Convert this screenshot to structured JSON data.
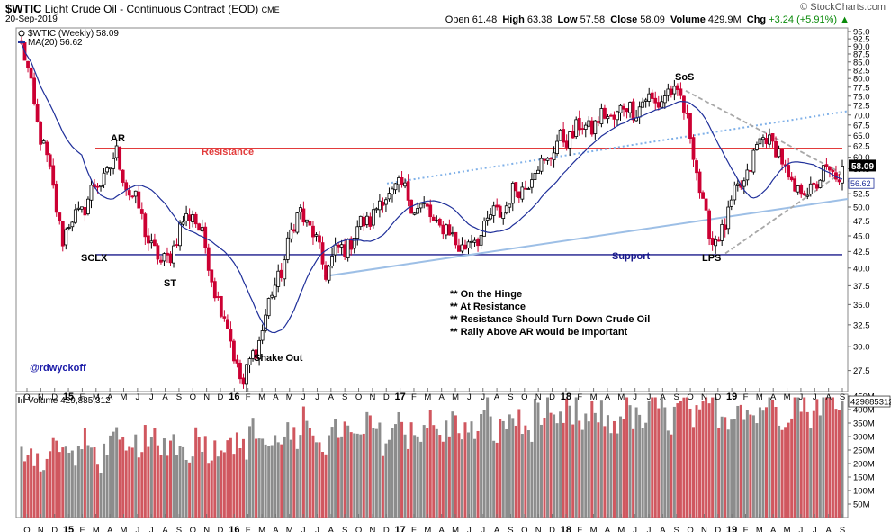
{
  "header": {
    "symbol": "$WTIC",
    "name": "Light Crude Oil - Continuous Contract (EOD)",
    "exchange": "CME",
    "date": "20-Sep-2019",
    "brand": "© StockCharts.com",
    "open_label": "Open",
    "open": "61.48",
    "high_label": "High",
    "high": "63.38",
    "low_label": "Low",
    "low": "57.58",
    "close_label": "Close",
    "close": "58.09",
    "volume_label": "Volume",
    "volume": "429.9M",
    "chg_label": "Chg",
    "chg": "+3.24 (+5.91%)",
    "chg_icon": "up-triangle-icon"
  },
  "legend": {
    "price": "$WTIC (Weekly) 58.09",
    "ma": "MA(20) 56.62",
    "volume": "Volume 429,885,312"
  },
  "annotations": {
    "handle": "@rdwyckoff",
    "notes": [
      "** On the Hinge",
      "** At Resistance",
      "** Resistance Should Turn Down Crude Oil",
      "** Rally Above AR would be Important"
    ]
  },
  "colors": {
    "up": "#000000",
    "down": "#cc0033",
    "ma": "#1f2f9a",
    "resistance": "#e23b3b",
    "support": "#1a1a8c",
    "trend": "#9dbfe6",
    "trend_dotted": "#7fb0e8",
    "wedge": "#a8a8a8",
    "vol_up": "#8c8c8c",
    "vol_down": "#d0575f",
    "price_tag": "#000000"
  },
  "chart_data": [
    {
      "type": "candlestick",
      "title": "$WTIC (Weekly)",
      "x_ticks": [
        "O",
        "N",
        "D",
        "15",
        "F",
        "M",
        "A",
        "M",
        "J",
        "J",
        "A",
        "S",
        "O",
        "N",
        "D",
        "16",
        "F",
        "M",
        "A",
        "M",
        "J",
        "J",
        "A",
        "S",
        "O",
        "N",
        "D",
        "17",
        "F",
        "M",
        "A",
        "M",
        "J",
        "J",
        "A",
        "S",
        "O",
        "N",
        "D",
        "18",
        "F",
        "M",
        "A",
        "M",
        "J",
        "J",
        "A",
        "S",
        "O",
        "N",
        "D",
        "19",
        "F",
        "M",
        "A",
        "M",
        "J",
        "J",
        "A",
        "S"
      ],
      "y_ticks": [
        27.5,
        30.0,
        32.5,
        35.0,
        37.5,
        40.0,
        42.5,
        45.0,
        47.5,
        50.0,
        52.5,
        55.0,
        57.5,
        60.0,
        62.5,
        65.0,
        67.5,
        70.0,
        72.5,
        75.0,
        77.5,
        80.0,
        82.5,
        85.0,
        87.5,
        90.0,
        92.5,
        95.0
      ],
      "y_scale": "log",
      "ylim": [
        25.8,
        95.0
      ],
      "last_price_tag": "58.09",
      "ma_tag": "56.62",
      "key_points": [
        {
          "date": "2014-10",
          "close": 90
        },
        {
          "date": "2015-01",
          "close": 45
        },
        {
          "date": "2015-05",
          "close": 60
        },
        {
          "date": "2015-08",
          "close": 40
        },
        {
          "date": "2015-10",
          "close": 50
        },
        {
          "date": "2016-02",
          "close": 26
        },
        {
          "date": "2016-06",
          "close": 50
        },
        {
          "date": "2016-08",
          "close": 40
        },
        {
          "date": "2017-01",
          "close": 54
        },
        {
          "date": "2017-06",
          "close": 43
        },
        {
          "date": "2017-11",
          "close": 57
        },
        {
          "date": "2018-01",
          "close": 65
        },
        {
          "date": "2018-06",
          "close": 72
        },
        {
          "date": "2018-10",
          "close": 76
        },
        {
          "date": "2018-12",
          "close": 43
        },
        {
          "date": "2019-04",
          "close": 66
        },
        {
          "date": "2019-06",
          "close": 52
        },
        {
          "date": "2019-09",
          "close": 58.09
        }
      ],
      "labels": [
        {
          "text": "AR",
          "price": 62.5
        },
        {
          "text": "Resistance",
          "price": 60.0
        },
        {
          "text": "SCLX",
          "price": 41.0
        },
        {
          "text": "ST",
          "price": 37.5
        },
        {
          "text": "Shake Out",
          "price": 27.3
        },
        {
          "text": "Support",
          "price": 41.0
        },
        {
          "text": "SoS",
          "price": 79.0
        },
        {
          "text": "LPS",
          "price": 40.0
        }
      ],
      "lines": {
        "resistance": 62.0,
        "support": 42.0
      }
    },
    {
      "type": "bar",
      "title": "Volume",
      "latest": 429885312,
      "latest_tag": "429885312",
      "y_ticks": [
        "50M",
        "100M",
        "150M",
        "200M",
        "250M",
        "300M",
        "350M",
        "400M",
        "450M"
      ],
      "ylim": [
        0,
        450000000
      ]
    }
  ]
}
